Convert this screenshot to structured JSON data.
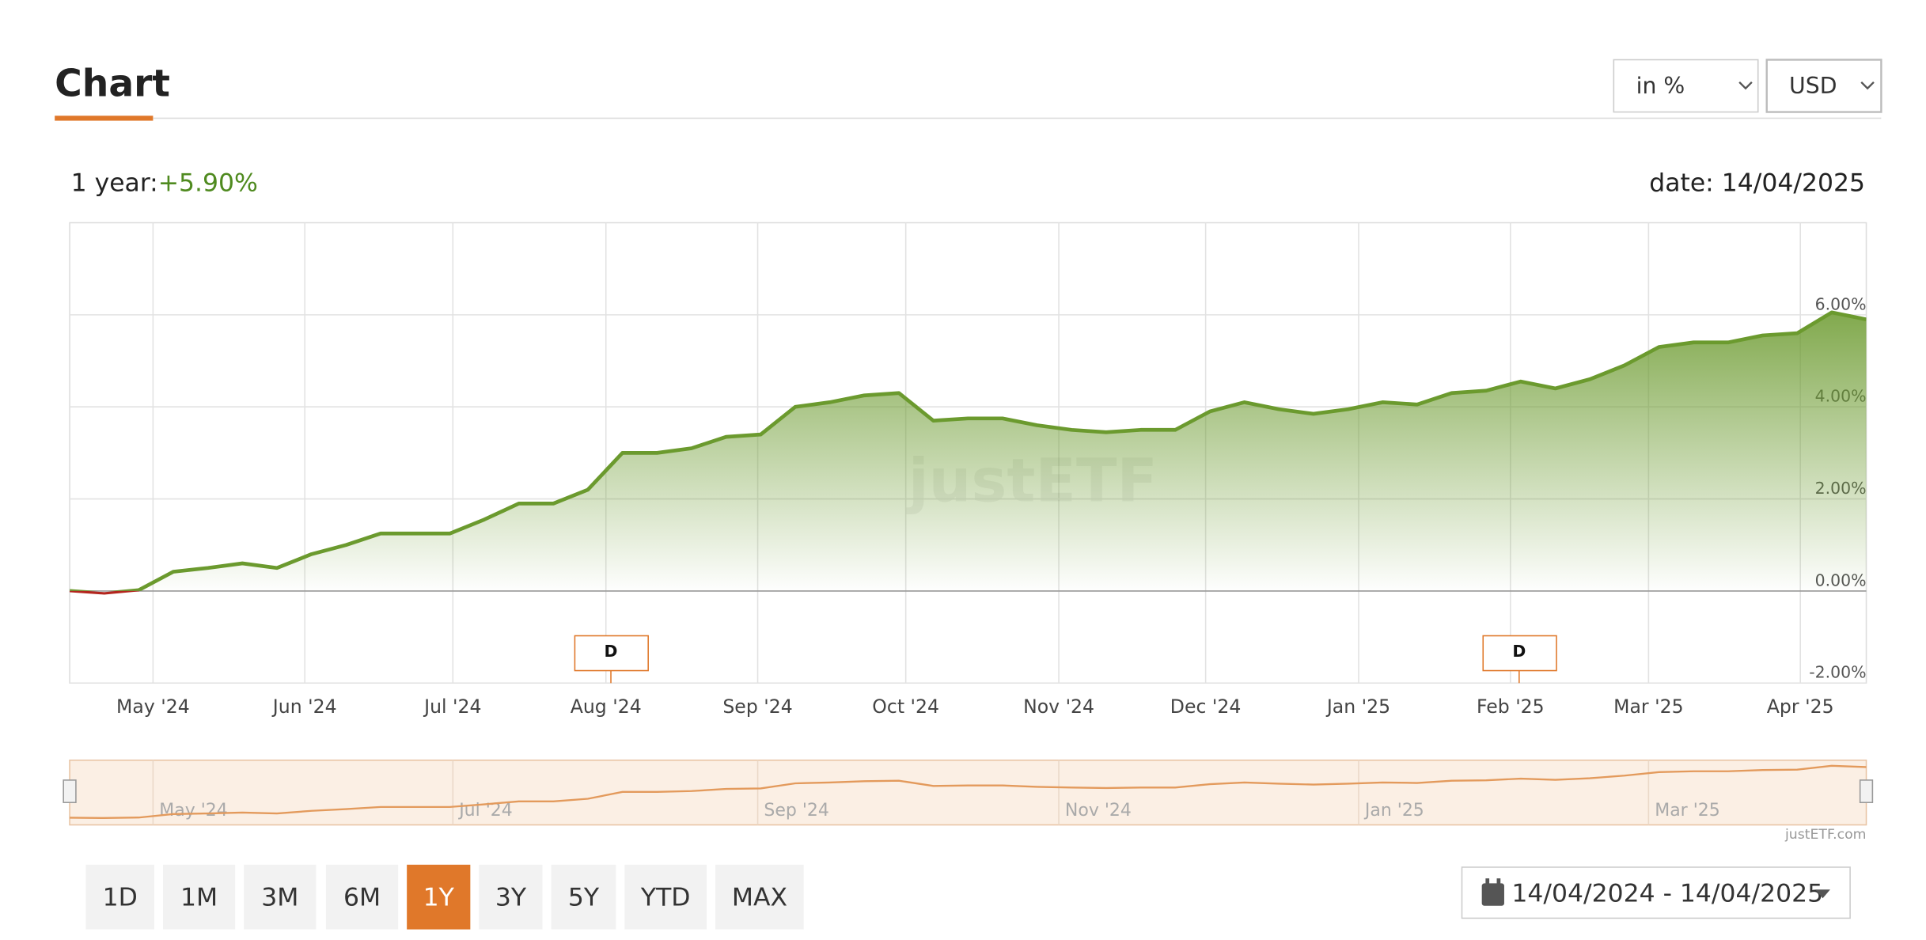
{
  "header": {
    "title": "Chart",
    "unit_select": "in %",
    "currency_select": "USD"
  },
  "summary": {
    "label": "1 year:",
    "value": "+5.90%",
    "date": "date: 14/04/2025"
  },
  "chart_data": {
    "type": "line",
    "series": [
      {
        "color": "#6b9a2e",
        "negative_color": "#b3261e",
        "values": [
          0,
          -0.05,
          0.02,
          0.42,
          0.5,
          0.6,
          0.5,
          0.8,
          1.0,
          1.25,
          1.25,
          1.25,
          1.55,
          1.9,
          1.9,
          2.2,
          3.0,
          3.0,
          3.1,
          3.35,
          3.4,
          4.0,
          4.1,
          4.25,
          4.3,
          3.7,
          3.75,
          3.75,
          3.6,
          3.5,
          3.45,
          3.5,
          3.5,
          3.9,
          4.1,
          3.95,
          3.85,
          3.95,
          4.1,
          4.05,
          4.3,
          4.35,
          4.55,
          4.4,
          4.6,
          4.9,
          5.3,
          5.4,
          5.4,
          5.55,
          5.6,
          6.05,
          5.9
        ]
      }
    ],
    "x_labels": [
      "May '24",
      "Jun '24",
      "Jul '24",
      "Aug '24",
      "Sep '24",
      "Oct '24",
      "Nov '24",
      "Dec '24",
      "Jan '25",
      "Feb '25",
      "Mar '25",
      "Apr '25"
    ],
    "ylim": [
      -2,
      8
    ],
    "yticks": [
      {
        "value": -2,
        "label": "-2.00%"
      },
      {
        "value": 0,
        "label": "0.00%"
      },
      {
        "value": 2,
        "label": "2.00%"
      },
      {
        "value": 4,
        "label": "4.00%"
      },
      {
        "value": 6,
        "label": "6.00%"
      }
    ],
    "grid": true,
    "annotations": [
      "D",
      "D"
    ],
    "watermark": "justETF",
    "navigator": {
      "color": "#e39a5c",
      "labels": [
        "May '24",
        "Jul '24",
        "Sep '24",
        "Nov '24",
        "Jan '25",
        "Mar '25"
      ]
    },
    "credit": "justETF.com"
  },
  "range_buttons": [
    "1D",
    "1M",
    "3M",
    "6M",
    "1Y",
    "3Y",
    "5Y",
    "YTD",
    "MAX"
  ],
  "active_range": "1Y",
  "date_range": "14/04/2024 - 14/04/2025"
}
